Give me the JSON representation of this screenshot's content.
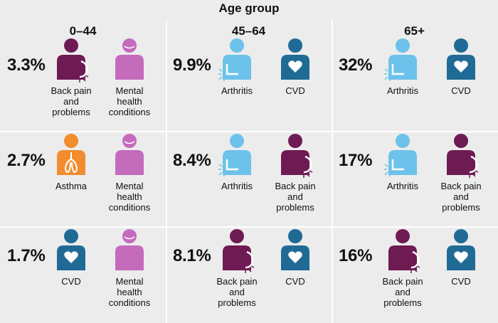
{
  "title": "Age group",
  "colors": {
    "back_pain": "#6e1b53",
    "mental_health": "#c46bbb",
    "arthritis": "#6cc2ea",
    "cvd": "#1f6b96",
    "asthma": "#f28c2e",
    "background": "#ececec"
  },
  "columns": [
    {
      "header": "0–44",
      "rows": [
        {
          "pct": "3.3%",
          "conditions": [
            {
              "icon": "back-pain-icon",
              "type": "back_pain",
              "label": "Back pain\nand\nproblems"
            },
            {
              "icon": "mental-health-icon",
              "type": "mental_health",
              "label": "Mental\nhealth\nconditions"
            }
          ]
        },
        {
          "pct": "2.7%",
          "conditions": [
            {
              "icon": "asthma-icon",
              "type": "asthma",
              "label": "Asthma"
            },
            {
              "icon": "mental-health-icon",
              "type": "mental_health",
              "label": "Mental\nhealth\nconditions"
            }
          ]
        },
        {
          "pct": "1.7%",
          "conditions": [
            {
              "icon": "cvd-icon",
              "type": "cvd",
              "label": "CVD"
            },
            {
              "icon": "mental-health-icon",
              "type": "mental_health",
              "label": "Mental\nhealth\nconditions"
            }
          ]
        }
      ]
    },
    {
      "header": "45–64",
      "rows": [
        {
          "pct": "9.9%",
          "conditions": [
            {
              "icon": "arthritis-icon",
              "type": "arthritis",
              "label": "Arthritis"
            },
            {
              "icon": "cvd-icon",
              "type": "cvd",
              "label": "CVD"
            }
          ]
        },
        {
          "pct": "8.4%",
          "conditions": [
            {
              "icon": "arthritis-icon",
              "type": "arthritis",
              "label": "Arthritis"
            },
            {
              "icon": "back-pain-icon",
              "type": "back_pain",
              "label": "Back pain\nand\nproblems"
            }
          ]
        },
        {
          "pct": "8.1%",
          "conditions": [
            {
              "icon": "back-pain-icon",
              "type": "back_pain",
              "label": "Back pain\nand\nproblems"
            },
            {
              "icon": "cvd-icon",
              "type": "cvd",
              "label": "CVD"
            }
          ]
        }
      ]
    },
    {
      "header": "65+",
      "rows": [
        {
          "pct": "32%",
          "conditions": [
            {
              "icon": "arthritis-icon",
              "type": "arthritis",
              "label": "Arthritis"
            },
            {
              "icon": "cvd-icon",
              "type": "cvd",
              "label": "CVD"
            }
          ]
        },
        {
          "pct": "17%",
          "conditions": [
            {
              "icon": "arthritis-icon",
              "type": "arthritis",
              "label": "Arthritis"
            },
            {
              "icon": "back-pain-icon",
              "type": "back_pain",
              "label": "Back pain\nand\nproblems"
            }
          ]
        },
        {
          "pct": "16%",
          "conditions": [
            {
              "icon": "back-pain-icon",
              "type": "back_pain",
              "label": "Back pain\nand\nproblems"
            },
            {
              "icon": "cvd-icon",
              "type": "cvd",
              "label": "CVD"
            }
          ]
        }
      ]
    }
  ]
}
